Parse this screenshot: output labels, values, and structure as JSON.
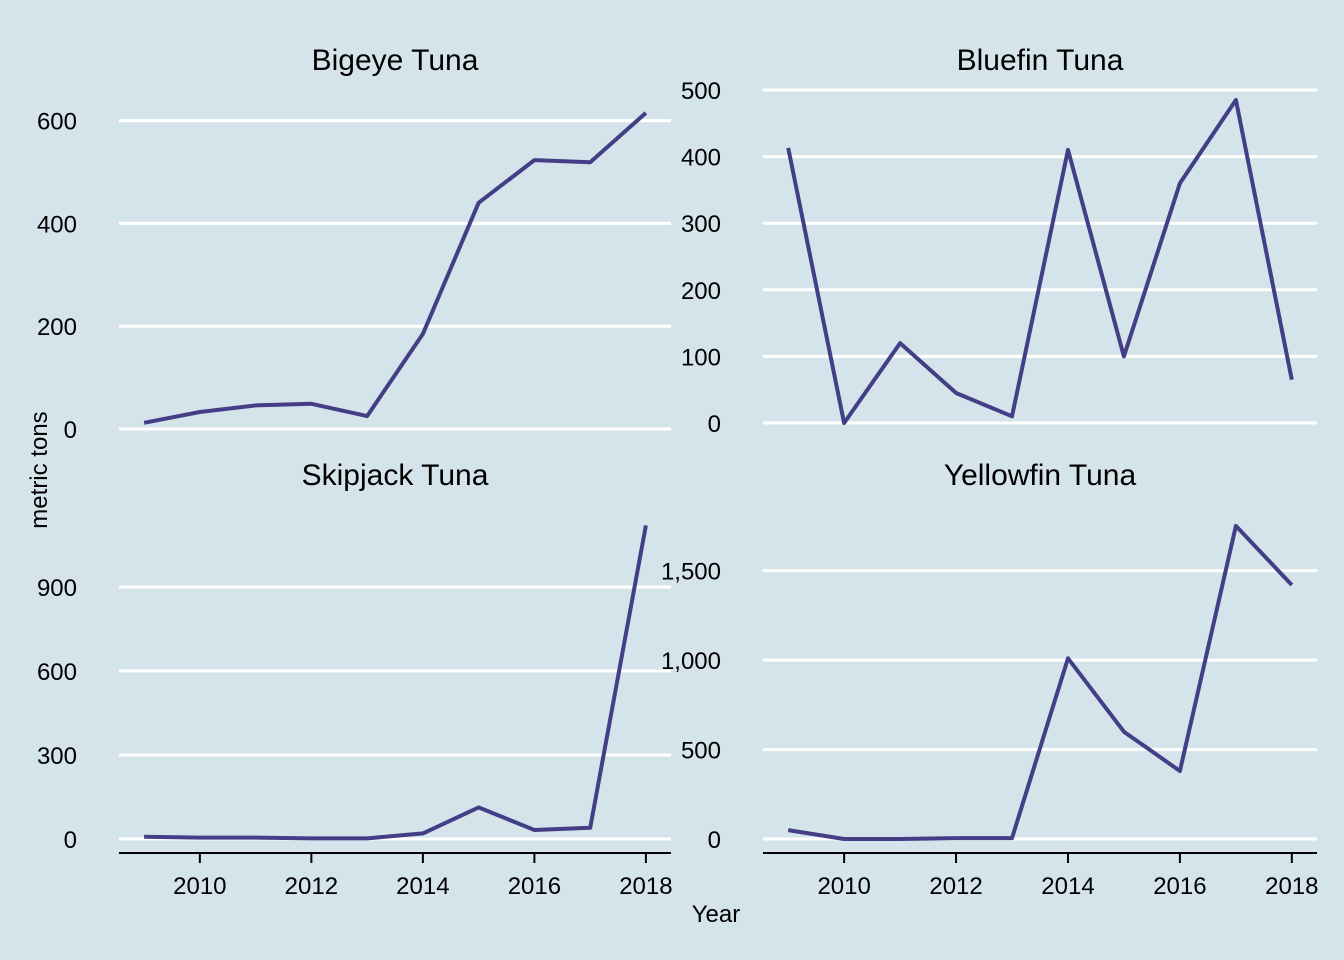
{
  "page": {
    "background": "#d5e4eb"
  },
  "axes": {
    "xlabel": "Year",
    "ylabel": "metric tons"
  },
  "style": {
    "line_color": "#433e85",
    "grid_color": "#ffffff",
    "axis_color": "#000000"
  },
  "chart_data": [
    {
      "type": "line",
      "title": "Bigeye Tuna",
      "x": [
        2009,
        2010,
        2011,
        2012,
        2013,
        2014,
        2015,
        2016,
        2017,
        2018
      ],
      "values": [
        12,
        33,
        46,
        49,
        25,
        185,
        440,
        523,
        519,
        615
      ],
      "ylim": [
        0,
        640
      ],
      "yticks": [
        0,
        200,
        400,
        600
      ],
      "ytick_labels": [
        "0",
        "200",
        "400",
        "600"
      ],
      "xticks": [],
      "xtick_labels": []
    },
    {
      "type": "line",
      "title": "Bluefin Tuna",
      "x": [
        2009,
        2010,
        2011,
        2012,
        2013,
        2014,
        2015,
        2016,
        2017,
        2018
      ],
      "values": [
        413,
        0,
        120,
        45,
        10,
        410,
        100,
        360,
        485,
        65
      ],
      "ylim": [
        0,
        500
      ],
      "yticks": [
        0,
        100,
        200,
        300,
        400,
        500
      ],
      "ytick_labels": [
        "0",
        "100",
        "200",
        "300",
        "400",
        "500"
      ],
      "xticks": [],
      "xtick_labels": []
    },
    {
      "type": "line",
      "title": "Skipjack Tuna",
      "x": [
        2009,
        2010,
        2011,
        2012,
        2013,
        2014,
        2015,
        2016,
        2017,
        2018
      ],
      "values": [
        8,
        5,
        5,
        2,
        2,
        20,
        113,
        32,
        40,
        1120
      ],
      "ylim": [
        0,
        1150
      ],
      "yticks": [
        0,
        300,
        600,
        900
      ],
      "ytick_labels": [
        "0",
        "300",
        "600",
        "900"
      ],
      "xticks": [
        2010,
        2012,
        2014,
        2016,
        2018
      ],
      "xtick_labels": [
        "2010",
        "2012",
        "2014",
        "2016",
        "2018"
      ]
    },
    {
      "type": "line",
      "title": "Yellowfin Tuna",
      "x": [
        2009,
        2010,
        2011,
        2012,
        2013,
        2014,
        2015,
        2016,
        2017,
        2018
      ],
      "values": [
        50,
        0,
        0,
        5,
        5,
        1010,
        600,
        380,
        1750,
        1420
      ],
      "ylim": [
        0,
        1800
      ],
      "yticks": [
        0,
        500,
        1000,
        1500
      ],
      "ytick_labels": [
        "0",
        "500",
        "1,000",
        "1,500"
      ],
      "xticks": [
        2010,
        2012,
        2014,
        2016,
        2018
      ],
      "xtick_labels": [
        "2010",
        "2012",
        "2014",
        "2016",
        "2018"
      ]
    }
  ]
}
